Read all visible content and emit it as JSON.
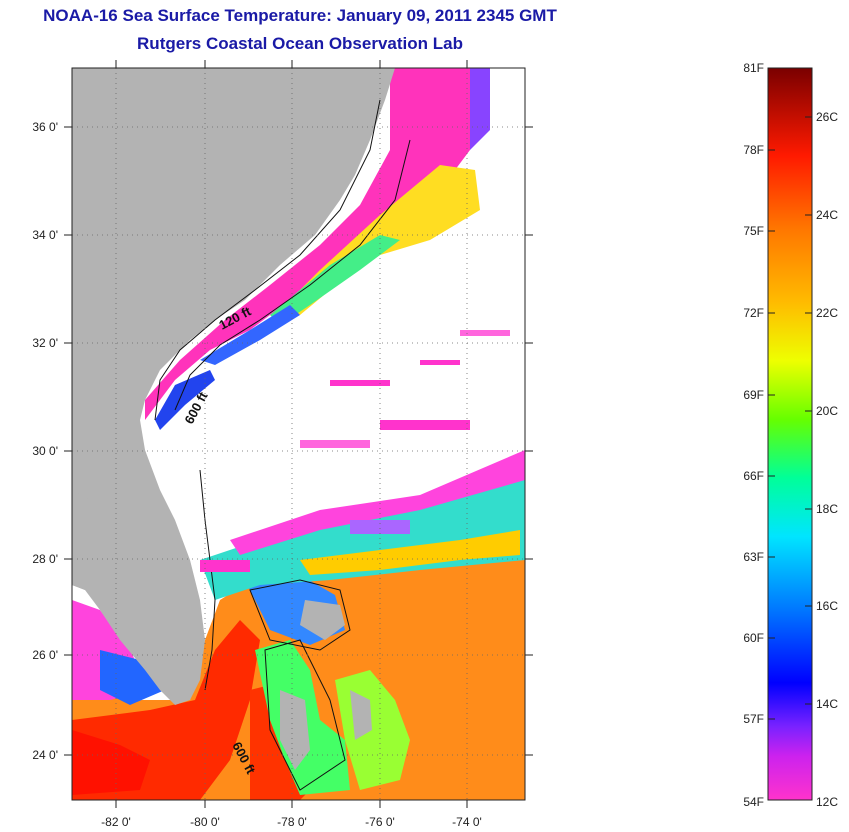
{
  "title": "NOAA-16 Sea Surface Temperature:  January 09, 2011 2345 GMT",
  "subtitle": "Rutgers Coastal Ocean Observation Lab",
  "map": {
    "lon_range": [
      -83.0,
      -72.5
    ],
    "lat_range": [
      23.0,
      37.0
    ],
    "lon_ticks": [
      "-82 0'",
      "-80 0'",
      "-78 0'",
      "-76 0'",
      "-74 0'"
    ],
    "lat_ticks": [
      "36 0'",
      "34 0'",
      "32 0'",
      "30 0'",
      "28 0'",
      "26 0'",
      "24 0'"
    ],
    "contour_labels": [
      "120 ft",
      "600 ft",
      "600 ft"
    ],
    "land_color": "#b3b3b3",
    "cloud_color": "#ffffff"
  },
  "colorbar": {
    "fahrenheit_labels": [
      "81F",
      "78F",
      "75F",
      "72F",
      "69F",
      "66F",
      "63F",
      "60F",
      "57F",
      "54F"
    ],
    "celsius_labels": [
      "26C",
      "24C",
      "22C",
      "20C",
      "18C",
      "16C",
      "14C",
      "12C"
    ],
    "colors": [
      "#ff33cc",
      "#aa22ff",
      "#0000ff",
      "#0088ff",
      "#00ffff",
      "#00ff88",
      "#88ff00",
      "#ffff00",
      "#ffaa00",
      "#ff5500",
      "#ff0000",
      "#880000"
    ]
  }
}
